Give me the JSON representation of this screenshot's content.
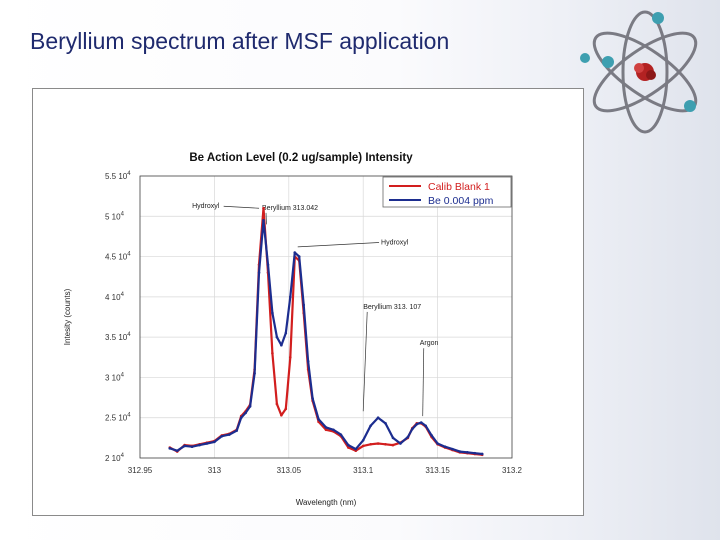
{
  "slide": {
    "title": "Beryllium spectrum after MSF application"
  },
  "logo": {
    "icon": "atom-icon"
  },
  "colors": {
    "title": "#1f2a6e",
    "series_red": "#d21e1e",
    "series_blue": "#1c2d8f"
  },
  "chart_data": {
    "type": "line",
    "title": "Be Action Level (0.2 ug/sample) Intensity",
    "xlabel": "Wavelength (nm)",
    "ylabel": "Intesity (counts)",
    "xlim": [
      312.95,
      313.2
    ],
    "ylim": [
      20000,
      55000
    ],
    "x_ticks": [
      {
        "value": 312.95,
        "label": "312.95"
      },
      {
        "value": 313.0,
        "label": "313"
      },
      {
        "value": 313.05,
        "label": "313.05"
      },
      {
        "value": 313.1,
        "label": "313.1"
      },
      {
        "value": 313.15,
        "label": "313.15"
      },
      {
        "value": 313.2,
        "label": "313.2"
      }
    ],
    "y_ticks": [
      {
        "value": 20000,
        "mant": "2",
        "exp": "4"
      },
      {
        "value": 25000,
        "mant": "2.5",
        "exp": "4"
      },
      {
        "value": 30000,
        "mant": "3",
        "exp": "4"
      },
      {
        "value": 35000,
        "mant": "3.5",
        "exp": "4"
      },
      {
        "value": 40000,
        "mant": "4",
        "exp": "4"
      },
      {
        "value": 45000,
        "mant": "4.5",
        "exp": "4"
      },
      {
        "value": 50000,
        "mant": "5",
        "exp": "4"
      },
      {
        "value": 55000,
        "mant": "5.5",
        "exp": "4"
      }
    ],
    "grid": true,
    "legend_position": "top-right",
    "series": [
      {
        "name": "Calib Blank 1",
        "color": "#d21e1e",
        "x": [
          312.97,
          312.975,
          312.98,
          312.985,
          312.99,
          312.995,
          313.0,
          313.005,
          313.01,
          313.015,
          313.018,
          313.021,
          313.024,
          313.027,
          313.03,
          313.033,
          313.036,
          313.039,
          313.042,
          313.045,
          313.048,
          313.051,
          313.054,
          313.057,
          313.06,
          313.063,
          313.066,
          313.07,
          313.075,
          313.08,
          313.085,
          313.09,
          313.095,
          313.1,
          313.105,
          313.11,
          313.115,
          313.12,
          313.125,
          313.13,
          313.133,
          313.136,
          313.139,
          313.142,
          313.146,
          313.15,
          313.155,
          313.16,
          313.165,
          313.17,
          313.175,
          313.18
        ],
        "y": [
          21300,
          20800,
          21600,
          21500,
          21700,
          21900,
          22100,
          22800,
          23000,
          23500,
          25200,
          25800,
          26600,
          31000,
          44000,
          51000,
          43000,
          33000,
          26700,
          25300,
          26100,
          32500,
          45000,
          44500,
          38000,
          31000,
          27100,
          24500,
          23500,
          23300,
          22700,
          21300,
          20900,
          21500,
          21700,
          21800,
          21700,
          21600,
          21900,
          22500,
          23700,
          24300,
          24300,
          23900,
          22600,
          21700,
          21300,
          21000,
          20700,
          20600,
          20500,
          20400
        ]
      },
      {
        "name": "Be 0.004 ppm",
        "color": "#1c2d8f",
        "x": [
          312.97,
          312.975,
          312.98,
          312.985,
          312.99,
          312.995,
          313.0,
          313.005,
          313.01,
          313.015,
          313.018,
          313.021,
          313.024,
          313.027,
          313.03,
          313.033,
          313.036,
          313.039,
          313.042,
          313.045,
          313.048,
          313.051,
          313.054,
          313.057,
          313.06,
          313.063,
          313.066,
          313.07,
          313.075,
          313.08,
          313.085,
          313.09,
          313.095,
          313.1,
          313.105,
          313.11,
          313.115,
          313.12,
          313.125,
          313.13,
          313.133,
          313.136,
          313.139,
          313.142,
          313.146,
          313.15,
          313.155,
          313.16,
          313.165,
          313.17,
          313.175,
          313.18
        ],
        "y": [
          21200,
          20900,
          21500,
          21400,
          21600,
          21800,
          22000,
          22700,
          22900,
          23400,
          25000,
          25600,
          26400,
          30500,
          43000,
          49500,
          44000,
          38000,
          35000,
          34000,
          35500,
          40000,
          45500,
          45000,
          39000,
          32000,
          27400,
          24800,
          23800,
          23500,
          22900,
          21600,
          21100,
          22200,
          24000,
          25000,
          24300,
          22500,
          21800,
          22600,
          23600,
          24200,
          24400,
          24000,
          22800,
          21800,
          21400,
          21100,
          20800,
          20700,
          20600,
          20500
        ]
      }
    ],
    "annotations": [
      {
        "text": "Hydroxyl",
        "lx": 312.985,
        "ly": 51000,
        "tx": 313.03,
        "ty": 51000,
        "anchor": "left"
      },
      {
        "text": "Beryllium 313.042",
        "lx": 313.032,
        "ly": 50800,
        "tx": 313.035,
        "ty": 49000,
        "anchor": "left"
      },
      {
        "text": "Hydroxyl",
        "lx": 313.112,
        "ly": 46500,
        "tx": 313.056,
        "ty": 46200,
        "anchor": "left"
      },
      {
        "text": "Beryllium 313. 107",
        "lx": 313.1,
        "ly": 38500,
        "tx": 313.1,
        "ty": 25800,
        "anchor": "left"
      },
      {
        "text": "Argon",
        "lx": 313.138,
        "ly": 34000,
        "tx": 313.14,
        "ty": 25200,
        "anchor": "left"
      }
    ]
  }
}
